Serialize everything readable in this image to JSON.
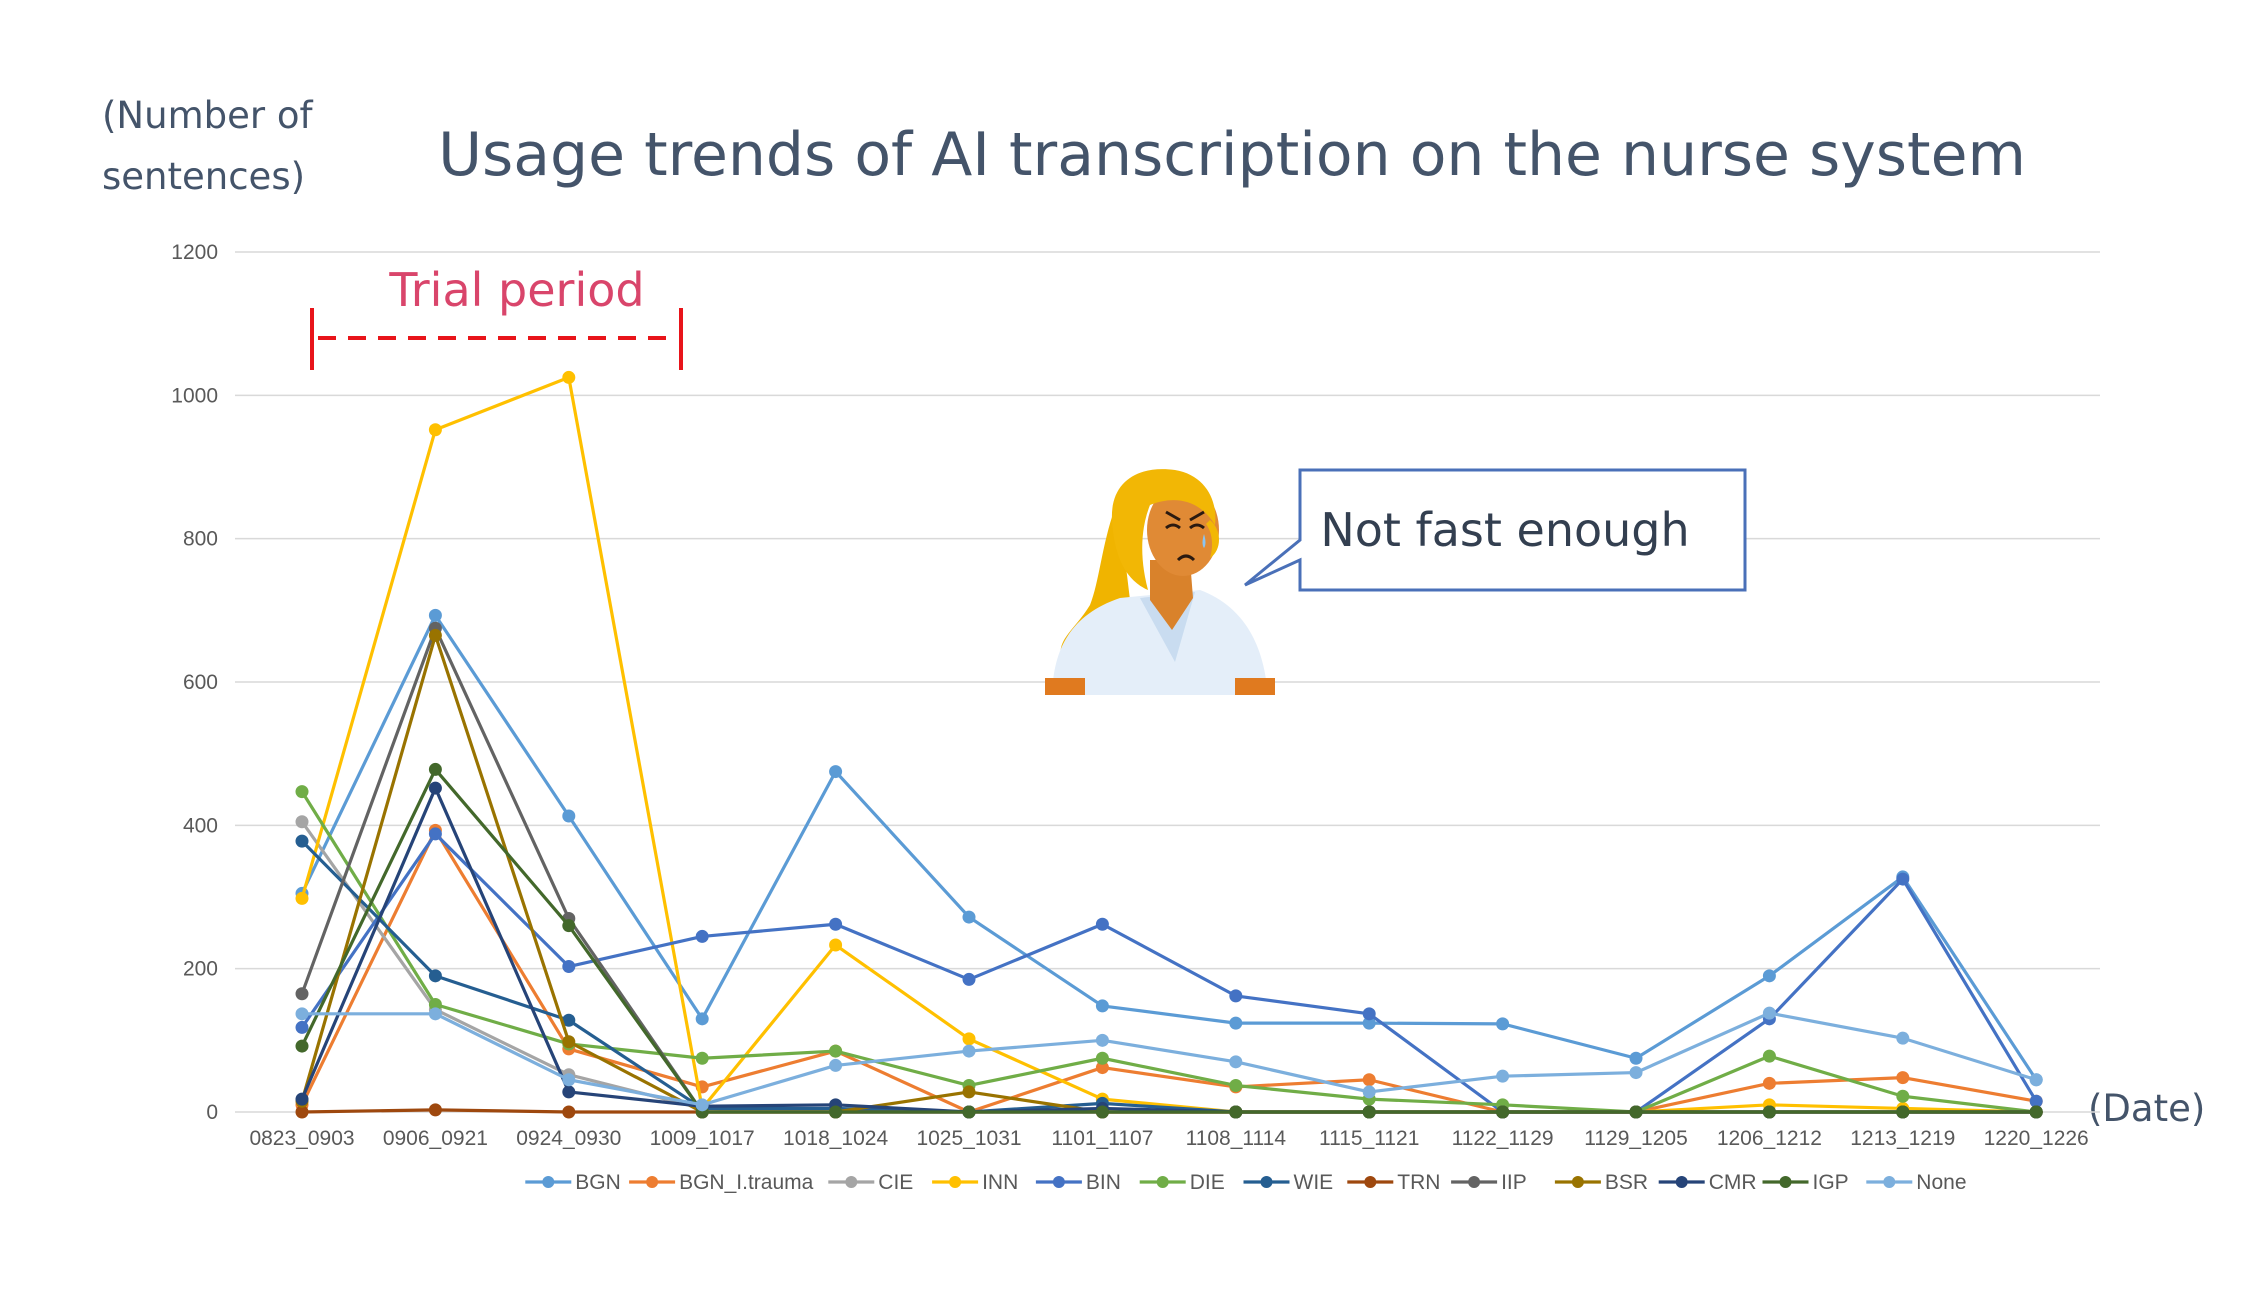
{
  "chart_data": {
    "type": "line",
    "title": "Usage trends of AI transcription on the nurse system",
    "ylabel_line1": "(Number of",
    "ylabel_line2": "sentences)",
    "xlabel": "(Date)",
    "ylim": [
      0,
      1200
    ],
    "yticks": [
      0,
      200,
      400,
      600,
      800,
      1000,
      1200
    ],
    "grid": true,
    "legend_position": "bottom",
    "categories": [
      "0823_0903",
      "0906_0921",
      "0924_0930",
      "1009_1017",
      "1018_1024",
      "1025_1031",
      "1101_1107",
      "1108_1114",
      "1115_1121",
      "1122_1129",
      "1129_1205",
      "1206_1212",
      "1213_1219",
      "1220_1226"
    ],
    "series": [
      {
        "name": "BGN",
        "color": "#5B9BD5",
        "values": [
          305,
          693,
          413,
          130,
          475,
          272,
          148,
          124,
          124,
          123,
          75,
          190,
          328,
          45
        ]
      },
      {
        "name": "BGN_I.trauma",
        "color": "#ED7D31",
        "values": [
          10,
          393,
          88,
          35,
          85,
          0,
          62,
          35,
          45,
          0,
          0,
          40,
          48,
          15
        ]
      },
      {
        "name": "CIE",
        "color": "#A5A5A5",
        "values": [
          405,
          143,
          52,
          5,
          0,
          0,
          0,
          0,
          0,
          0,
          0,
          0,
          0,
          0
        ]
      },
      {
        "name": "INN",
        "color": "#FFC000",
        "values": [
          298,
          952,
          1025,
          5,
          233,
          102,
          18,
          0,
          0,
          0,
          0,
          10,
          5,
          0
        ]
      },
      {
        "name": "BIN",
        "color": "#4472C4",
        "values": [
          118,
          388,
          203,
          245,
          262,
          185,
          262,
          162,
          137,
          0,
          0,
          130,
          325,
          15
        ]
      },
      {
        "name": "DIE",
        "color": "#70AD47",
        "values": [
          447,
          150,
          95,
          75,
          85,
          37,
          75,
          37,
          18,
          10,
          0,
          78,
          22,
          0
        ]
      },
      {
        "name": "WIE",
        "color": "#255E91",
        "values": [
          378,
          190,
          128,
          5,
          5,
          0,
          12,
          0,
          0,
          0,
          0,
          0,
          0,
          0
        ]
      },
      {
        "name": "TRN",
        "color": "#9E480E",
        "values": [
          0,
          3,
          0,
          0,
          0,
          0,
          0,
          0,
          0,
          0,
          0,
          0,
          0,
          0
        ]
      },
      {
        "name": "IIP",
        "color": "#636363",
        "values": [
          165,
          675,
          270,
          0,
          0,
          0,
          0,
          0,
          0,
          0,
          0,
          0,
          0,
          0
        ]
      },
      {
        "name": "BSR",
        "color": "#997300",
        "values": [
          15,
          665,
          98,
          0,
          0,
          28,
          0,
          0,
          0,
          0,
          0,
          0,
          0,
          0
        ]
      },
      {
        "name": "CMR",
        "color": "#264478",
        "values": [
          18,
          452,
          28,
          8,
          10,
          0,
          5,
          0,
          0,
          0,
          0,
          0,
          0,
          0
        ]
      },
      {
        "name": "IGP",
        "color": "#43682B",
        "values": [
          92,
          478,
          260,
          0,
          0,
          0,
          0,
          0,
          0,
          0,
          0,
          0,
          0,
          0
        ]
      },
      {
        "name": "None",
        "color": "#7CAFDD",
        "values": [
          137,
          137,
          45,
          10,
          65,
          85,
          100,
          70,
          28,
          50,
          55,
          138,
          103,
          45
        ]
      }
    ]
  },
  "annotations": {
    "trial_period_label": "Trial period",
    "trial_period_color": "#D9456B",
    "trial_bracket_color": "#E8141A",
    "callout_text": "Not fast enough",
    "callout_border_color": "#4A70B8",
    "illustration": "frowning-nurse-illustration"
  },
  "colors": {
    "title": "#44546A",
    "gridline": "#D9D9D9",
    "tick_text": "#595959"
  }
}
